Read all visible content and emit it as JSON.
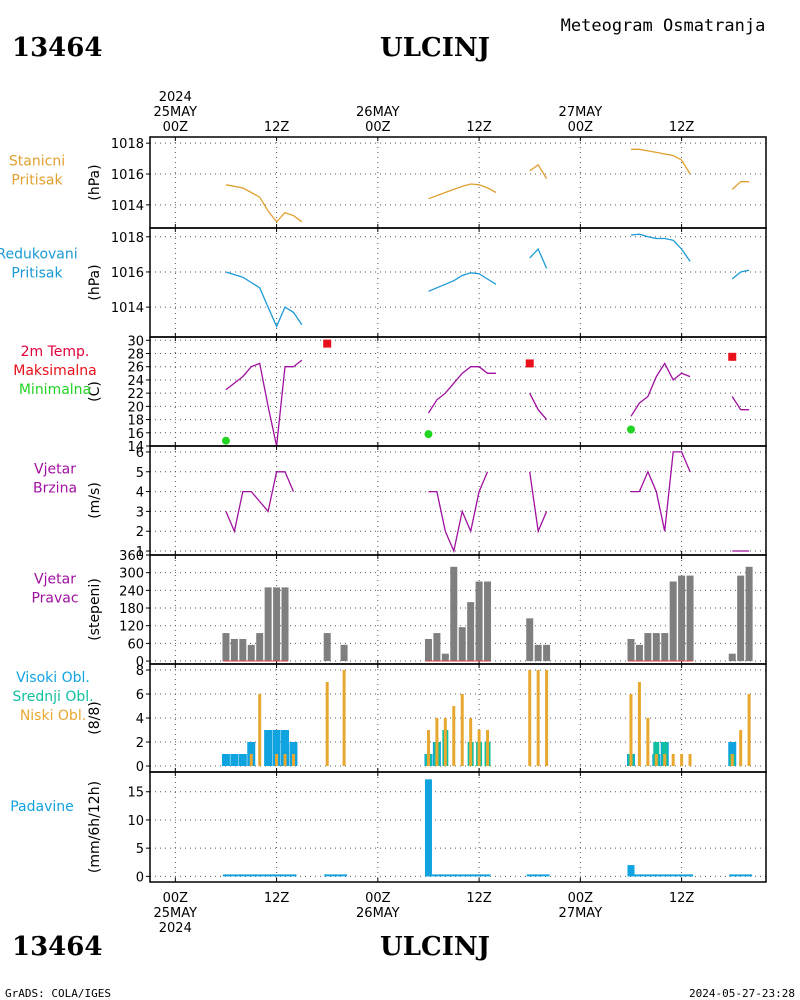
{
  "header": {
    "station_id": "13464",
    "station_name": "ULCINJ",
    "subtitle": "Meteogram Osmatranja"
  },
  "footer": {
    "credit": "GrADS: COLA/IGES",
    "timestamp": "2024-05-27-23:28"
  },
  "time_axis": {
    "top_labels": [
      {
        "t": 0,
        "lines": [
          "2024",
          "25MAY",
          "00Z"
        ]
      },
      {
        "t": 12,
        "lines": [
          "12Z"
        ]
      },
      {
        "t": 24,
        "lines": [
          "26MAY",
          "00Z"
        ]
      },
      {
        "t": 36,
        "lines": [
          "12Z"
        ]
      },
      {
        "t": 48,
        "lines": [
          "27MAY",
          "00Z"
        ]
      },
      {
        "t": 60,
        "lines": [
          "12Z"
        ]
      }
    ],
    "bottom_labels": [
      {
        "t": 0,
        "lines": [
          "00Z",
          "25MAY",
          "2024"
        ]
      },
      {
        "t": 12,
        "lines": [
          "12Z"
        ]
      },
      {
        "t": 24,
        "lines": [
          "00Z",
          "26MAY"
        ]
      },
      {
        "t": 36,
        "lines": [
          "12Z"
        ]
      },
      {
        "t": 48,
        "lines": [
          "00Z",
          "27MAY"
        ]
      },
      {
        "t": 60,
        "lines": [
          "12Z"
        ]
      }
    ],
    "range_hours": [
      -3,
      70
    ]
  },
  "colors": {
    "pressure": "#e0a030",
    "reduced": "#1a9ad6",
    "temp_label": "#e0003a",
    "max": "#e8101a",
    "min": "#22d422",
    "wind": "#a010a0",
    "dir_bar": "#7f7f7f",
    "dir_calm": "#e04040",
    "high_cloud": "#11a3e0",
    "mid_cloud": "#10c0a0",
    "low_cloud": "#e8a830",
    "precip": "#11a3e0"
  },
  "chart_data": [
    {
      "type": "line",
      "id": "stanicni",
      "labels": [
        "Stanicni",
        "Pritisak"
      ],
      "ylabel": "(hPa)",
      "ylim": [
        1012.5,
        1018.4
      ],
      "yticks": [
        1014,
        1016,
        1018
      ],
      "series": [
        {
          "color_key": "pressure",
          "segments": [
            [
              [
                6,
                1015.3
              ],
              [
                8,
                1015.1
              ],
              [
                9,
                1014.8
              ],
              [
                10,
                1014.5
              ],
              [
                11,
                1013.6
              ],
              [
                12,
                1012.9
              ],
              [
                13,
                1013.5
              ],
              [
                14,
                1013.3
              ],
              [
                15,
                1012.9
              ]
            ],
            [
              [
                30,
                1014.4
              ],
              [
                31,
                1014.6
              ],
              [
                32,
                1014.8
              ],
              [
                33,
                1015.0
              ],
              [
                34,
                1015.2
              ],
              [
                35,
                1015.35
              ],
              [
                36,
                1015.3
              ],
              [
                37,
                1015.1
              ],
              [
                38,
                1014.8
              ]
            ],
            [
              [
                42,
                1016.2
              ],
              [
                43,
                1016.6
              ],
              [
                44,
                1015.7
              ]
            ],
            [
              [
                54,
                1017.6
              ],
              [
                55,
                1017.6
              ],
              [
                56,
                1017.5
              ],
              [
                57,
                1017.4
              ],
              [
                58,
                1017.3
              ],
              [
                59,
                1017.2
              ],
              [
                60,
                1016.9
              ],
              [
                61,
                1016.0
              ]
            ],
            [
              [
                66,
                1015.0
              ],
              [
                67,
                1015.5
              ],
              [
                68,
                1015.5
              ]
            ]
          ]
        }
      ]
    },
    {
      "type": "line",
      "id": "redukovani",
      "labels": [
        "Redukovani",
        "Pritisak"
      ],
      "ylabel": "(hPa)",
      "ylim": [
        1012.3,
        1018.5
      ],
      "yticks": [
        1014,
        1016,
        1018
      ],
      "series": [
        {
          "color_key": "reduced",
          "segments": [
            [
              [
                6,
                1016.0
              ],
              [
                8,
                1015.7
              ],
              [
                9,
                1015.4
              ],
              [
                10,
                1015.1
              ],
              [
                11,
                1014.0
              ],
              [
                12,
                1012.9
              ],
              [
                13,
                1014.0
              ],
              [
                14,
                1013.7
              ],
              [
                15,
                1013.0
              ]
            ],
            [
              [
                30,
                1014.9
              ],
              [
                31,
                1015.1
              ],
              [
                32,
                1015.3
              ],
              [
                33,
                1015.5
              ],
              [
                34,
                1015.8
              ],
              [
                35,
                1015.95
              ],
              [
                36,
                1015.9
              ],
              [
                37,
                1015.6
              ],
              [
                38,
                1015.3
              ]
            ],
            [
              [
                42,
                1016.8
              ],
              [
                43,
                1017.3
              ],
              [
                44,
                1016.2
              ]
            ],
            [
              [
                54,
                1018.1
              ],
              [
                55,
                1018.15
              ],
              [
                56,
                1018.0
              ],
              [
                57,
                1017.9
              ],
              [
                58,
                1017.9
              ],
              [
                59,
                1017.8
              ],
              [
                60,
                1017.3
              ],
              [
                61,
                1016.6
              ]
            ],
            [
              [
                66,
                1015.6
              ],
              [
                67,
                1016.0
              ],
              [
                68,
                1016.1
              ]
            ]
          ]
        }
      ]
    },
    {
      "type": "line",
      "id": "temperatura",
      "labels": [
        "2m Temp.",
        "Maksimalna",
        "Minimalna"
      ],
      "ylabel": "(C)",
      "ylim": [
        14,
        30.5
      ],
      "yticks": [
        14,
        16,
        18,
        20,
        22,
        24,
        26,
        28,
        30
      ],
      "series": [
        {
          "color_key": "wind",
          "name": "2m Temp.",
          "segments": [
            [
              [
                6,
                22.5
              ],
              [
                8,
                24.5
              ],
              [
                9,
                26.0
              ],
              [
                10,
                26.5
              ],
              [
                11,
                20.0
              ],
              [
                12,
                14.0
              ],
              [
                13,
                26.0
              ],
              [
                14,
                26.0
              ],
              [
                15,
                27.0
              ]
            ],
            [
              [
                30,
                19.0
              ],
              [
                31,
                21.0
              ],
              [
                32,
                22.0
              ],
              [
                33,
                23.5
              ],
              [
                34,
                25.0
              ],
              [
                35,
                26.0
              ],
              [
                36,
                26.0
              ],
              [
                37,
                25.0
              ],
              [
                38,
                25.0
              ]
            ],
            [
              [
                42,
                22.0
              ],
              [
                43,
                19.5
              ],
              [
                44,
                18.0
              ]
            ],
            [
              [
                54,
                18.5
              ],
              [
                55,
                20.5
              ],
              [
                56,
                21.5
              ],
              [
                57,
                24.5
              ],
              [
                58,
                26.5
              ],
              [
                59,
                24.0
              ],
              [
                60,
                25.0
              ],
              [
                61,
                24.5
              ]
            ],
            [
              [
                66,
                21.5
              ],
              [
                67,
                19.5
              ],
              [
                68,
                19.5
              ]
            ]
          ]
        }
      ],
      "max_points": [
        [
          18,
          29.5
        ],
        [
          42,
          26.5
        ],
        [
          66,
          27.5
        ]
      ],
      "min_points": [
        [
          6,
          14.8
        ],
        [
          30,
          15.8
        ],
        [
          54,
          16.5
        ]
      ]
    },
    {
      "type": "line",
      "id": "brzina",
      "labels": [
        "Vjetar",
        "Brzina"
      ],
      "ylabel": "(m/s)",
      "ylim": [
        0.8,
        6.3
      ],
      "yticks": [
        1,
        2,
        3,
        4,
        5,
        6
      ],
      "series": [
        {
          "color_key": "wind",
          "segments": [
            [
              [
                6,
                3
              ],
              [
                7,
                2
              ],
              [
                8,
                4
              ],
              [
                9,
                4
              ],
              [
                10,
                3.5
              ],
              [
                11,
                3
              ],
              [
                12,
                5
              ],
              [
                13,
                5
              ],
              [
                14,
                4
              ]
            ],
            [
              [
                30,
                4
              ],
              [
                31,
                4
              ],
              [
                32,
                2
              ],
              [
                33,
                1
              ],
              [
                34,
                3
              ],
              [
                35,
                2
              ],
              [
                36,
                4
              ],
              [
                37,
                5
              ]
            ],
            [
              [
                42,
                5
              ],
              [
                43,
                2
              ],
              [
                44,
                3
              ]
            ],
            [
              [
                54,
                4
              ],
              [
                55,
                4
              ],
              [
                56,
                5
              ],
              [
                57,
                4
              ],
              [
                58,
                2
              ],
              [
                59,
                6
              ],
              [
                60,
                6
              ],
              [
                61,
                5
              ]
            ],
            [
              [
                66,
                1
              ],
              [
                67,
                1
              ],
              [
                68,
                1
              ]
            ]
          ]
        }
      ]
    },
    {
      "type": "bar",
      "id": "pravac",
      "labels": [
        "Vjetar",
        "Pravac"
      ],
      "ylabel": "(stepeni)",
      "ylim": [
        -10,
        360
      ],
      "yticks": [
        0,
        60,
        120,
        180,
        240,
        300,
        360
      ],
      "tick_labels": [
        "0",
        "60",
        "120",
        "180",
        "240",
        "300",
        "360"
      ],
      "x": [
        6,
        7,
        8,
        9,
        10,
        11,
        12,
        13,
        18,
        20,
        30,
        31,
        32,
        33,
        34,
        35,
        36,
        37,
        42,
        43,
        44,
        54,
        55,
        56,
        57,
        58,
        59,
        60,
        61,
        66,
        67,
        68
      ],
      "values": [
        95,
        75,
        75,
        55,
        95,
        250,
        250,
        250,
        95,
        55,
        75,
        95,
        25,
        320,
        115,
        200,
        270,
        270,
        145,
        55,
        55,
        75,
        55,
        95,
        95,
        95,
        270,
        290,
        290,
        25,
        290,
        320
      ],
      "calm_ranges": [
        [
          6,
          13
        ],
        [
          30,
          37
        ],
        [
          54,
          61
        ]
      ]
    },
    {
      "type": "bar",
      "id": "oblacnost",
      "labels": [
        "Visoki Obl.",
        "Srednji Obl.",
        "Niski Obl."
      ],
      "ylabel": "(8/8)",
      "ylim": [
        -0.5,
        8.5
      ],
      "yticks": [
        0,
        2,
        4,
        6,
        8
      ],
      "series": [
        {
          "name": "Visoki Obl.",
          "color_key": "high_cloud",
          "x": [
            6,
            7,
            8,
            9,
            11,
            12,
            13,
            14,
            30,
            31,
            54,
            57,
            58,
            66
          ],
          "values": [
            1,
            1,
            1,
            2,
            3,
            3,
            3,
            2,
            1,
            2,
            1,
            1,
            2,
            2
          ]
        },
        {
          "name": "Srednji Obl.",
          "color_key": "mid_cloud",
          "x": [
            30,
            31,
            32,
            35,
            36,
            37,
            54,
            57,
            58,
            66
          ],
          "values": [
            1,
            2,
            3,
            2,
            2,
            2,
            1,
            2,
            2,
            1
          ]
        },
        {
          "name": "Niski Obl.",
          "color_key": "low_cloud",
          "x": [
            9,
            10,
            12,
            13,
            14,
            18,
            20,
            30,
            31,
            32,
            33,
            34,
            35,
            36,
            37,
            42,
            43,
            44,
            54,
            55,
            56,
            57,
            58,
            59,
            60,
            61,
            66,
            67,
            68
          ],
          "values": [
            1,
            6,
            1,
            1,
            1,
            7,
            8,
            3,
            4,
            4,
            5,
            6,
            4,
            3,
            3,
            8,
            8,
            8,
            6,
            7,
            4,
            1,
            1,
            1,
            1,
            1,
            1,
            3,
            6
          ]
        }
      ]
    },
    {
      "type": "bar",
      "id": "padavine",
      "labels": [
        "Padavine"
      ],
      "ylabel": "(mm/6h/12h)",
      "ylim": [
        -1,
        18.5
      ],
      "yticks": [
        0,
        5,
        10,
        15
      ],
      "x": [
        30,
        54
      ],
      "values": [
        17.2,
        2.0
      ],
      "trace_ranges": [
        [
          6,
          14
        ],
        [
          18,
          20
        ],
        [
          30,
          37
        ],
        [
          42,
          44
        ],
        [
          54,
          61
        ],
        [
          66,
          68
        ]
      ]
    }
  ]
}
